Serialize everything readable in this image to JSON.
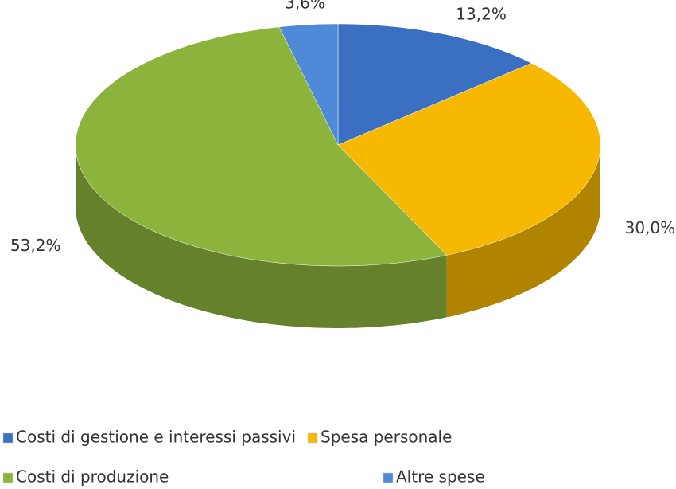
{
  "chart_data": {
    "type": "pie",
    "categories": [
      "Costi di gestione e interessi passivi",
      "Spesa personale",
      "Costi di produzione",
      "Altre spese"
    ],
    "values": [
      13.2,
      30.0,
      53.2,
      3.6
    ],
    "value_labels": [
      "13,2%",
      "30,0%",
      "53,2%",
      "3,6%"
    ],
    "colors": [
      "#3b6fc2",
      "#f6b800",
      "#8cb33c",
      "#4f8ad9"
    ],
    "legend": "bottom"
  }
}
